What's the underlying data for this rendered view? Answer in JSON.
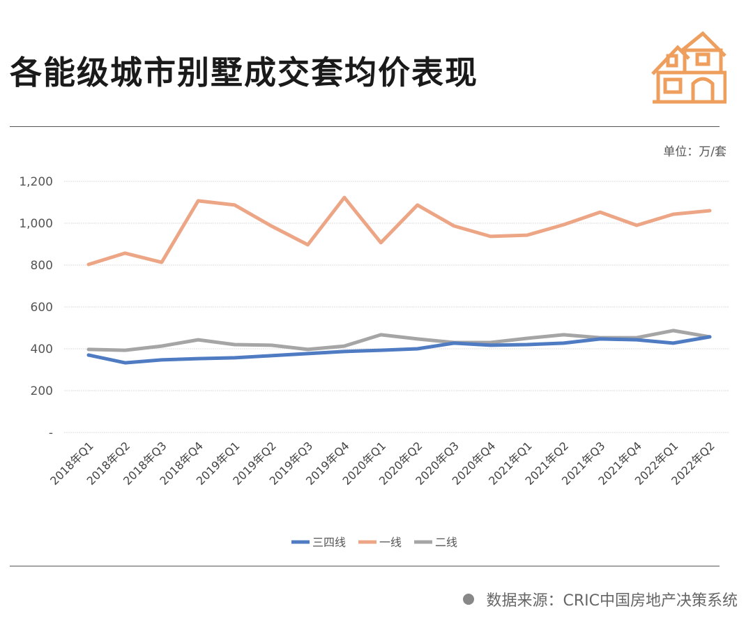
{
  "header": {
    "title": "各能级城市别墅成交套均价表现",
    "unit": "单位：万/套"
  },
  "footer": {
    "source": "数据来源：CRIC中国房地产决策系统"
  },
  "colors": {
    "series1": "#4F7BC2",
    "series2": "#EDA685",
    "series3": "#A5A5A5",
    "icon": "#EE9F5E"
  },
  "chart_data": {
    "type": "line",
    "title": "各能级城市别墅成交套均价表现",
    "ylabel": "单位：万/套",
    "ylim": [
      0,
      1200
    ],
    "yticks": [
      {
        "v": 0,
        "label": "-"
      },
      {
        "v": 200,
        "label": "200"
      },
      {
        "v": 400,
        "label": "400"
      },
      {
        "v": 600,
        "label": "600"
      },
      {
        "v": 800,
        "label": "800"
      },
      {
        "v": 1000,
        "label": "1,000"
      },
      {
        "v": 1200,
        "label": "1,200"
      }
    ],
    "grid": true,
    "legend": "bottom",
    "categories": [
      "2018年Q1",
      "2018年Q2",
      "2018年Q3",
      "2018年Q4",
      "2019年Q1",
      "2019年Q2",
      "2019年Q3",
      "2019年Q4",
      "2020年Q1",
      "2020年Q2",
      "2020年Q3",
      "2020年Q4",
      "2021年Q1",
      "2021年Q2",
      "2021年Q3",
      "2021年Q4",
      "2022年Q1",
      "2022年Q2"
    ],
    "series": [
      {
        "name": "三四线",
        "color": "#4F7BC2",
        "values": [
          370,
          333,
          347,
          353,
          357,
          367,
          377,
          387,
          393,
          400,
          427,
          417,
          420,
          427,
          447,
          443,
          427,
          457
        ]
      },
      {
        "name": "一线",
        "color": "#EDA685",
        "values": [
          803,
          857,
          813,
          1107,
          1087,
          987,
          897,
          1123,
          907,
          1087,
          987,
          937,
          943,
          993,
          1053,
          990,
          1043,
          1060
        ]
      },
      {
        "name": "二线",
        "color": "#A5A5A5",
        "values": [
          397,
          393,
          413,
          443,
          420,
          417,
          397,
          413,
          467,
          447,
          430,
          430,
          450,
          467,
          453,
          453,
          487,
          457
        ]
      }
    ]
  }
}
